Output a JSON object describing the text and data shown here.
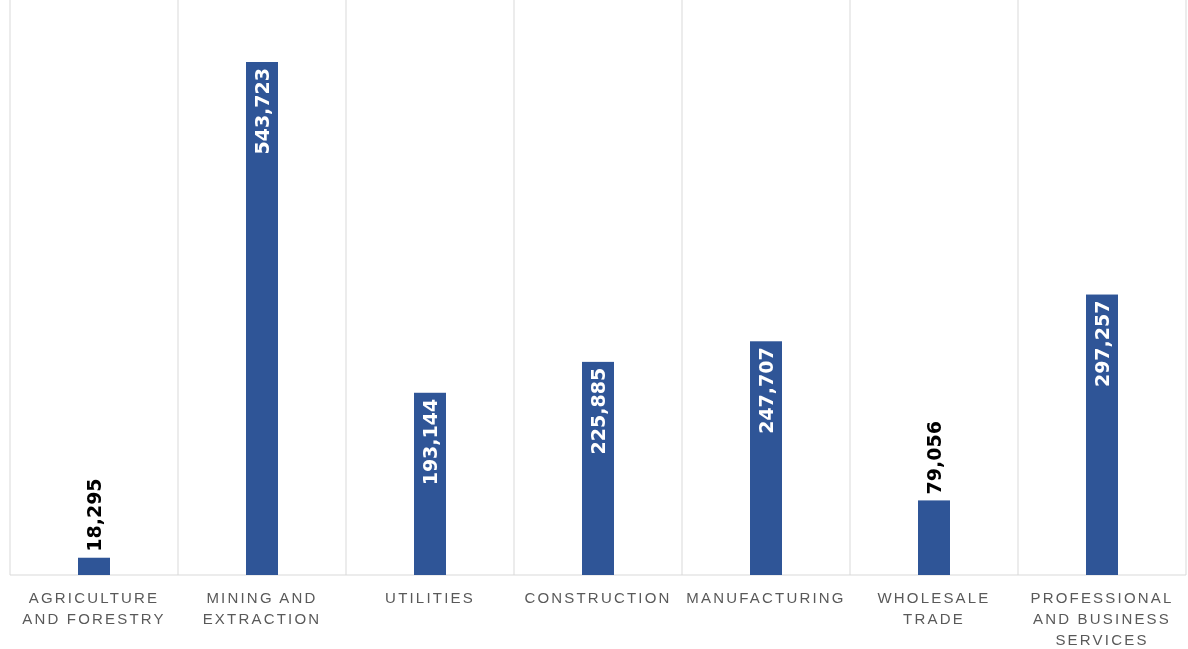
{
  "chart_data": {
    "type": "bar",
    "categories": [
      "AGRICULTURE AND FORESTRY",
      "MINING AND EXTRACTION",
      "UTILITIES",
      "CONSTRUCTION",
      "MANUFACTURING",
      "WHOLESALE TRADE",
      "PROFESSIONAL AND BUSINESS SERVICES"
    ],
    "values": [
      18295,
      543723,
      193144,
      225885,
      247707,
      79056,
      297257
    ],
    "value_labels": [
      "18,295",
      "543,723",
      "193,144",
      "225,885",
      "247,707",
      "79,056",
      "297,257"
    ],
    "color": "#2f5597",
    "grid": "x"
  }
}
